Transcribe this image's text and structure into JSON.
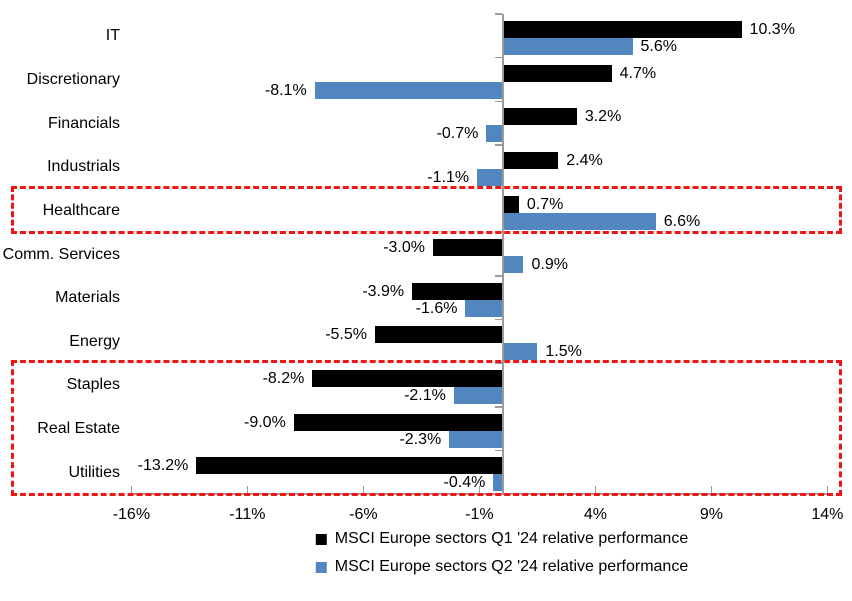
{
  "chart_data": {
    "type": "bar",
    "orientation": "horizontal",
    "title": "",
    "xlabel": "",
    "ylabel": "",
    "categories": [
      "IT",
      "Discretionary",
      "Financials",
      "Industrials",
      "Healthcare",
      "Comm. Services",
      "Materials",
      "Energy",
      "Staples",
      "Real Estate",
      "Utilities"
    ],
    "series": [
      {
        "name": "MSCI Europe sectors Q1 '24 relative performance",
        "color": "#000000",
        "values": [
          10.3,
          4.7,
          3.2,
          2.4,
          0.7,
          -3.0,
          -3.9,
          -5.5,
          -8.2,
          -9.0,
          -13.2
        ],
        "value_labels": [
          "10.3%",
          "4.7%",
          "3.2%",
          "2.4%",
          "0.7%",
          "-3.0%",
          "-3.9%",
          "-5.5%",
          "-8.2%",
          "-9.0%",
          "-13.2%"
        ]
      },
      {
        "name": "MSCI Europe sectors Q2 '24 relative performance",
        "color": "#5187be",
        "values": [
          5.6,
          -8.1,
          -0.7,
          -1.1,
          6.6,
          0.9,
          -1.6,
          1.5,
          -2.1,
          -2.3,
          -0.4
        ],
        "value_labels": [
          "5.6%",
          "-8.1%",
          "-0.7%",
          "-1.1%",
          "6.6%",
          "0.9%",
          "-1.6%",
          "1.5%",
          "-2.1%",
          "-2.3%",
          "-0.4%"
        ]
      }
    ],
    "x_ticks": [
      {
        "label": "-16%",
        "value": -16
      },
      {
        "label": "-11%",
        "value": -11
      },
      {
        "label": "-6%",
        "value": -6
      },
      {
        "label": "-1%",
        "value": -1
      },
      {
        "label": "4%",
        "value": 4
      },
      {
        "label": "9%",
        "value": 9
      },
      {
        "label": "14%",
        "value": 14
      }
    ],
    "xlim": [
      -16,
      14
    ],
    "grid": false,
    "legend_position": "bottom",
    "axis_color": "#9b9b9b",
    "highlight_color": "#f01414",
    "highlights": [
      {
        "name": "healthcare-box",
        "rows": [
          "Healthcare"
        ]
      },
      {
        "name": "defensives-box",
        "rows": [
          "Staples",
          "Real Estate",
          "Utilities"
        ]
      }
    ]
  }
}
